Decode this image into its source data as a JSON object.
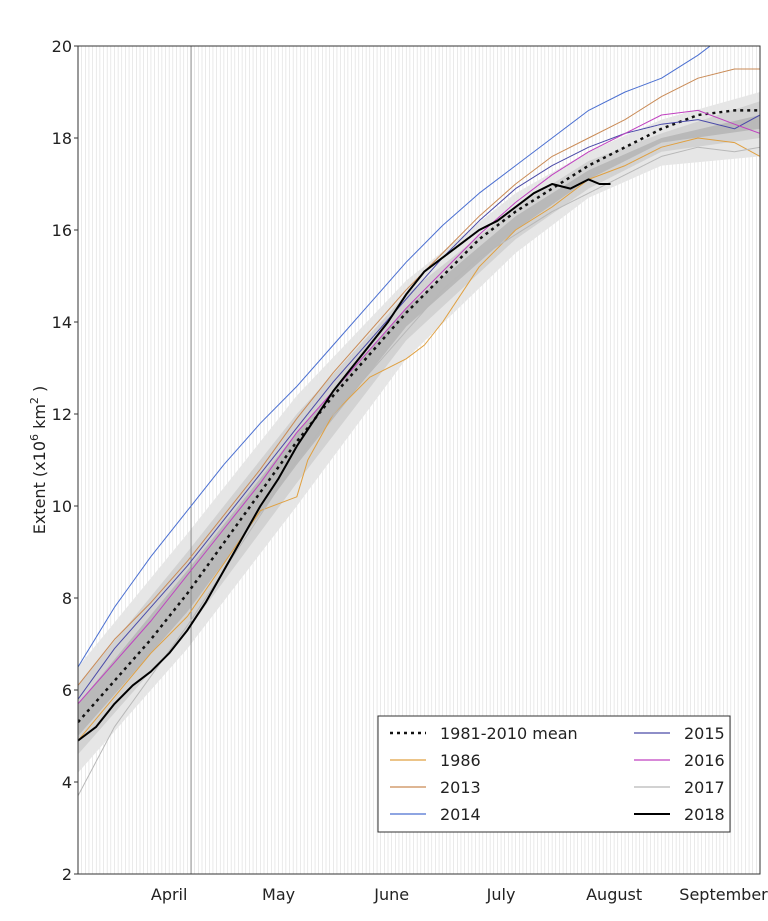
{
  "chart_data": {
    "type": "line",
    "ylabel": "Extent (x10",
    "ylabel_sup": "6",
    "ylabel_unit": " km",
    "ylabel_sup2": "2",
    "ylabel_close": " )",
    "ylim": [
      2,
      20
    ],
    "y_ticks": [
      2,
      4,
      6,
      8,
      10,
      12,
      14,
      16,
      18,
      20
    ],
    "x_unit": "day of season (day 0 = 21 March)",
    "xlim": [
      0,
      187
    ],
    "month_labels": [
      {
        "label": "April",
        "day": 25
      },
      {
        "label": "May",
        "day": 55
      },
      {
        "label": "June",
        "day": 86
      },
      {
        "label": "July",
        "day": 116
      },
      {
        "label": "August",
        "day": 147
      },
      {
        "label": "September",
        "day": 177
      }
    ],
    "month_divider_day": 31,
    "bands": [
      {
        "name": "range",
        "color": "#e6e6e6",
        "x": [
          0,
          30,
          60,
          90,
          120,
          140,
          160,
          187
        ],
        "lower": [
          4.2,
          6.9,
          10.0,
          13.2,
          15.5,
          16.7,
          17.4,
          17.6
        ],
        "upper": [
          6.5,
          9.4,
          12.4,
          14.9,
          16.8,
          17.7,
          18.4,
          19.0
        ]
      },
      {
        "name": "interdecile",
        "color": "#d2d2d2",
        "x": [
          0,
          30,
          60,
          90,
          120,
          140,
          160,
          187
        ],
        "lower": [
          4.6,
          7.3,
          10.5,
          13.6,
          15.8,
          16.9,
          17.7,
          18.0
        ],
        "upper": [
          6.1,
          9.0,
          12.0,
          14.6,
          16.5,
          17.5,
          18.1,
          18.8
        ]
      },
      {
        "name": "interquartile",
        "color": "#b9b9b9",
        "x": [
          0,
          30,
          60,
          90,
          120,
          140,
          160,
          187
        ],
        "lower": [
          5.0,
          7.7,
          10.9,
          13.9,
          16.0,
          17.1,
          17.9,
          18.2
        ],
        "upper": [
          5.7,
          8.6,
          11.6,
          14.3,
          16.3,
          17.3,
          18.0,
          18.5
        ]
      }
    ],
    "series": [
      {
        "name": "1981-2010 mean",
        "color": "#111111",
        "width": 2.5,
        "dash": "3,4",
        "x": [
          0,
          10,
          20,
          30,
          40,
          50,
          60,
          70,
          80,
          90,
          100,
          110,
          120,
          130,
          140,
          150,
          160,
          170,
          180,
          187
        ],
        "y": [
          5.3,
          6.2,
          7.1,
          8.1,
          9.2,
          10.3,
          11.4,
          12.4,
          13.3,
          14.2,
          15.0,
          15.8,
          16.4,
          16.9,
          17.4,
          17.8,
          18.2,
          18.5,
          18.6,
          18.6
        ]
      },
      {
        "name": "1986",
        "color": "#e0a040",
        "width": 1,
        "dash": "",
        "x": [
          0,
          20,
          30,
          50,
          60,
          63,
          70,
          80,
          90,
          95,
          100,
          110,
          120,
          130,
          140,
          150,
          160,
          170,
          180,
          187
        ],
        "y": [
          4.9,
          6.8,
          7.6,
          9.9,
          10.2,
          11.0,
          12.0,
          12.8,
          13.2,
          13.5,
          14.0,
          15.2,
          16.0,
          16.5,
          17.1,
          17.4,
          17.8,
          18.0,
          17.9,
          17.6
        ]
      },
      {
        "name": "2013",
        "color": "#c98a55",
        "width": 1,
        "dash": "",
        "x": [
          0,
          10,
          20,
          30,
          40,
          50,
          60,
          70,
          80,
          90,
          100,
          110,
          120,
          130,
          140,
          150,
          160,
          170,
          180,
          187
        ],
        "y": [
          6.1,
          7.1,
          7.9,
          8.8,
          9.8,
          10.8,
          11.9,
          12.9,
          13.8,
          14.7,
          15.5,
          16.3,
          17.0,
          17.6,
          18.0,
          18.4,
          18.9,
          19.3,
          19.5,
          19.5
        ]
      },
      {
        "name": "2014",
        "color": "#4a6fd1",
        "width": 1,
        "dash": "",
        "x": [
          0,
          10,
          20,
          30,
          40,
          50,
          60,
          70,
          80,
          90,
          100,
          110,
          120,
          130,
          140,
          150,
          160,
          170,
          175,
          180,
          187
        ],
        "y": [
          6.5,
          7.8,
          8.9,
          9.9,
          10.9,
          11.8,
          12.6,
          13.5,
          14.4,
          15.3,
          16.1,
          16.8,
          17.4,
          18.0,
          18.6,
          19.0,
          19.3,
          19.8,
          20.1,
          20.4,
          20.8
        ]
      },
      {
        "name": "2015",
        "color": "#4a4aa8",
        "width": 1,
        "dash": "",
        "x": [
          0,
          10,
          20,
          30,
          40,
          50,
          60,
          70,
          80,
          90,
          100,
          110,
          120,
          130,
          140,
          150,
          160,
          170,
          180,
          187
        ],
        "y": [
          5.8,
          6.9,
          7.8,
          8.7,
          9.7,
          10.7,
          11.7,
          12.7,
          13.6,
          14.5,
          15.4,
          16.2,
          16.9,
          17.4,
          17.8,
          18.1,
          18.3,
          18.4,
          18.2,
          18.5
        ]
      },
      {
        "name": "2016",
        "color": "#c040c0",
        "width": 1,
        "dash": "",
        "x": [
          0,
          10,
          20,
          30,
          40,
          50,
          60,
          70,
          80,
          90,
          100,
          110,
          120,
          130,
          140,
          150,
          160,
          170,
          180,
          187
        ],
        "y": [
          5.7,
          6.6,
          7.5,
          8.5,
          9.5,
          10.5,
          11.6,
          12.5,
          13.4,
          14.3,
          15.1,
          15.9,
          16.6,
          17.2,
          17.7,
          18.1,
          18.5,
          18.6,
          18.3,
          18.1
        ]
      },
      {
        "name": "2017",
        "color": "#b8b8b8",
        "width": 1,
        "dash": "",
        "x": [
          0,
          10,
          20,
          30,
          40,
          50,
          60,
          70,
          80,
          90,
          100,
          110,
          120,
          130,
          140,
          150,
          160,
          170,
          180,
          187
        ],
        "y": [
          3.7,
          5.2,
          6.3,
          7.4,
          8.6,
          9.8,
          11.0,
          12.0,
          12.9,
          13.8,
          14.7,
          15.4,
          15.9,
          16.4,
          16.8,
          17.2,
          17.6,
          17.8,
          17.7,
          17.8
        ]
      },
      {
        "name": "2018",
        "color": "#000000",
        "width": 2,
        "dash": "",
        "x": [
          0,
          5,
          10,
          15,
          20,
          25,
          30,
          35,
          40,
          45,
          50,
          55,
          60,
          65,
          70,
          75,
          80,
          85,
          90,
          95,
          100,
          105,
          110,
          115,
          120,
          125,
          130,
          135,
          140,
          143,
          146
        ],
        "y": [
          4.9,
          5.2,
          5.7,
          6.1,
          6.4,
          6.8,
          7.3,
          7.9,
          8.6,
          9.3,
          10.0,
          10.6,
          11.3,
          11.9,
          12.5,
          13.0,
          13.5,
          14.0,
          14.6,
          15.1,
          15.4,
          15.7,
          16.0,
          16.2,
          16.5,
          16.8,
          17.0,
          16.9,
          17.1,
          17.0,
          17.0
        ]
      }
    ],
    "legend": {
      "placement": "bottom-right",
      "columns": [
        [
          "1981-2010 mean",
          "1986",
          "2013",
          "2014"
        ],
        [
          "2015",
          "2016",
          "2017",
          "2018"
        ]
      ]
    }
  }
}
